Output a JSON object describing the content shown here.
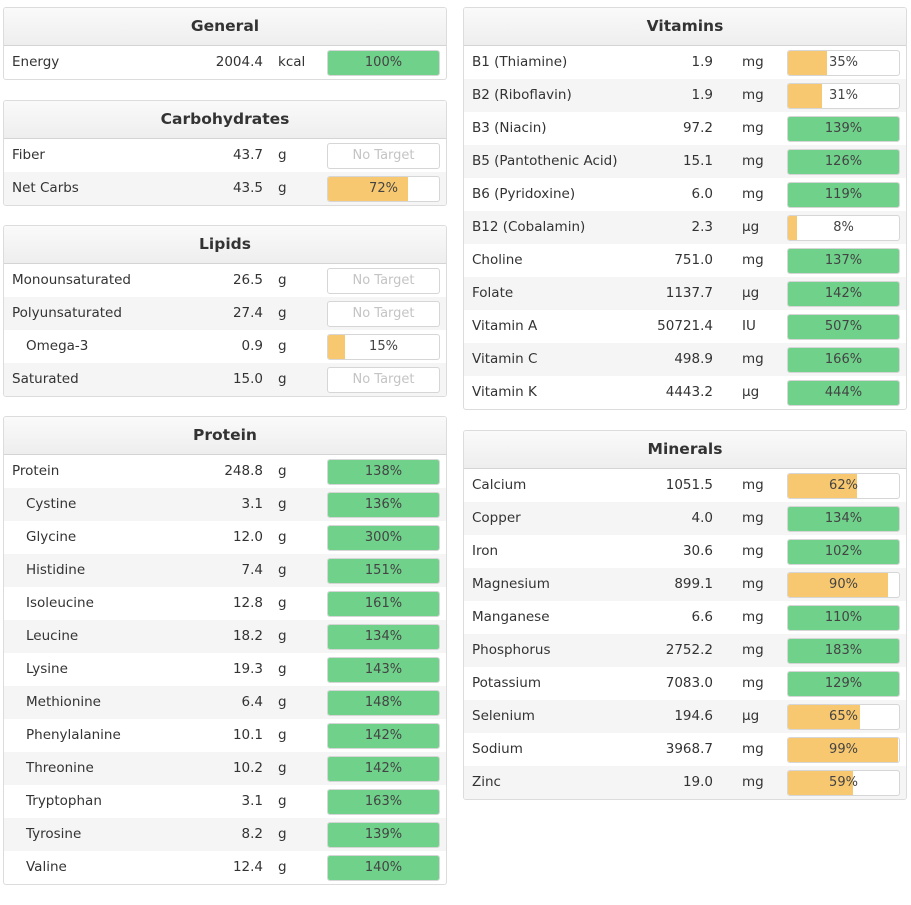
{
  "colors": {
    "green": "#6fd18a",
    "orange": "#f8c870"
  },
  "left": [
    {
      "title": "General",
      "rows": [
        {
          "name": "Energy",
          "amount": "2004.4",
          "unit": "kcal",
          "pct": "100%",
          "fraction": 1.0,
          "status": "green"
        }
      ]
    },
    {
      "title": "Carbohydrates",
      "rows": [
        {
          "name": "Fiber",
          "amount": "43.7",
          "unit": "g",
          "pct": "No Target",
          "fraction": 0,
          "status": "none"
        },
        {
          "name": "Net Carbs",
          "amount": "43.5",
          "unit": "g",
          "pct": "72%",
          "fraction": 0.72,
          "status": "orange"
        }
      ]
    },
    {
      "title": "Lipids",
      "rows": [
        {
          "name": "Monounsaturated",
          "amount": "26.5",
          "unit": "g",
          "pct": "No Target",
          "fraction": 0,
          "status": "none"
        },
        {
          "name": "Polyunsaturated",
          "amount": "27.4",
          "unit": "g",
          "pct": "No Target",
          "fraction": 0,
          "status": "none"
        },
        {
          "name": "Omega-3",
          "amount": "0.9",
          "unit": "g",
          "pct": "15%",
          "fraction": 0.15,
          "status": "orange",
          "sub": true
        },
        {
          "name": "Saturated",
          "amount": "15.0",
          "unit": "g",
          "pct": "No Target",
          "fraction": 0,
          "status": "none"
        }
      ]
    },
    {
      "title": "Protein",
      "rows": [
        {
          "name": "Protein",
          "amount": "248.8",
          "unit": "g",
          "pct": "138%",
          "fraction": 1.0,
          "status": "green"
        },
        {
          "name": "Cystine",
          "amount": "3.1",
          "unit": "g",
          "pct": "136%",
          "fraction": 1.0,
          "status": "green",
          "sub": true
        },
        {
          "name": "Glycine",
          "amount": "12.0",
          "unit": "g",
          "pct": "300%",
          "fraction": 1.0,
          "status": "green",
          "sub": true
        },
        {
          "name": "Histidine",
          "amount": "7.4",
          "unit": "g",
          "pct": "151%",
          "fraction": 1.0,
          "status": "green",
          "sub": true
        },
        {
          "name": "Isoleucine",
          "amount": "12.8",
          "unit": "g",
          "pct": "161%",
          "fraction": 1.0,
          "status": "green",
          "sub": true
        },
        {
          "name": "Leucine",
          "amount": "18.2",
          "unit": "g",
          "pct": "134%",
          "fraction": 1.0,
          "status": "green",
          "sub": true
        },
        {
          "name": "Lysine",
          "amount": "19.3",
          "unit": "g",
          "pct": "143%",
          "fraction": 1.0,
          "status": "green",
          "sub": true
        },
        {
          "name": "Methionine",
          "amount": "6.4",
          "unit": "g",
          "pct": "148%",
          "fraction": 1.0,
          "status": "green",
          "sub": true
        },
        {
          "name": "Phenylalanine",
          "amount": "10.1",
          "unit": "g",
          "pct": "142%",
          "fraction": 1.0,
          "status": "green",
          "sub": true
        },
        {
          "name": "Threonine",
          "amount": "10.2",
          "unit": "g",
          "pct": "142%",
          "fraction": 1.0,
          "status": "green",
          "sub": true
        },
        {
          "name": "Tryptophan",
          "amount": "3.1",
          "unit": "g",
          "pct": "163%",
          "fraction": 1.0,
          "status": "green",
          "sub": true
        },
        {
          "name": "Tyrosine",
          "amount": "8.2",
          "unit": "g",
          "pct": "139%",
          "fraction": 1.0,
          "status": "green",
          "sub": true
        },
        {
          "name": "Valine",
          "amount": "12.4",
          "unit": "g",
          "pct": "140%",
          "fraction": 1.0,
          "status": "green",
          "sub": true
        }
      ]
    }
  ],
  "right": [
    {
      "title": "Vitamins",
      "rows": [
        {
          "name": "B1 (Thiamine)",
          "amount": "1.9",
          "unit": "mg",
          "pct": "35%",
          "fraction": 0.35,
          "status": "orange"
        },
        {
          "name": "B2 (Riboflavin)",
          "amount": "1.9",
          "unit": "mg",
          "pct": "31%",
          "fraction": 0.31,
          "status": "orange"
        },
        {
          "name": "B3 (Niacin)",
          "amount": "97.2",
          "unit": "mg",
          "pct": "139%",
          "fraction": 1.0,
          "status": "green"
        },
        {
          "name": "B5 (Pantothenic Acid)",
          "amount": "15.1",
          "unit": "mg",
          "pct": "126%",
          "fraction": 1.0,
          "status": "green"
        },
        {
          "name": "B6 (Pyridoxine)",
          "amount": "6.0",
          "unit": "mg",
          "pct": "119%",
          "fraction": 1.0,
          "status": "green"
        },
        {
          "name": "B12 (Cobalamin)",
          "amount": "2.3",
          "unit": "µg",
          "pct": "8%",
          "fraction": 0.08,
          "status": "orange"
        },
        {
          "name": "Choline",
          "amount": "751.0",
          "unit": "mg",
          "pct": "137%",
          "fraction": 1.0,
          "status": "green"
        },
        {
          "name": "Folate",
          "amount": "1137.7",
          "unit": "µg",
          "pct": "142%",
          "fraction": 1.0,
          "status": "green"
        },
        {
          "name": "Vitamin A",
          "amount": "50721.4",
          "unit": "IU",
          "pct": "507%",
          "fraction": 1.0,
          "status": "green"
        },
        {
          "name": "Vitamin C",
          "amount": "498.9",
          "unit": "mg",
          "pct": "166%",
          "fraction": 1.0,
          "status": "green"
        },
        {
          "name": "Vitamin K",
          "amount": "4443.2",
          "unit": "µg",
          "pct": "444%",
          "fraction": 1.0,
          "status": "green"
        }
      ]
    },
    {
      "title": "Minerals",
      "rows": [
        {
          "name": "Calcium",
          "amount": "1051.5",
          "unit": "mg",
          "pct": "62%",
          "fraction": 0.62,
          "status": "orange"
        },
        {
          "name": "Copper",
          "amount": "4.0",
          "unit": "mg",
          "pct": "134%",
          "fraction": 1.0,
          "status": "green"
        },
        {
          "name": "Iron",
          "amount": "30.6",
          "unit": "mg",
          "pct": "102%",
          "fraction": 1.0,
          "status": "green"
        },
        {
          "name": "Magnesium",
          "amount": "899.1",
          "unit": "mg",
          "pct": "90%",
          "fraction": 0.9,
          "status": "orange"
        },
        {
          "name": "Manganese",
          "amount": "6.6",
          "unit": "mg",
          "pct": "110%",
          "fraction": 1.0,
          "status": "green"
        },
        {
          "name": "Phosphorus",
          "amount": "2752.2",
          "unit": "mg",
          "pct": "183%",
          "fraction": 1.0,
          "status": "green"
        },
        {
          "name": "Potassium",
          "amount": "7083.0",
          "unit": "mg",
          "pct": "129%",
          "fraction": 1.0,
          "status": "green"
        },
        {
          "name": "Selenium",
          "amount": "194.6",
          "unit": "µg",
          "pct": "65%",
          "fraction": 0.65,
          "status": "orange"
        },
        {
          "name": "Sodium",
          "amount": "3968.7",
          "unit": "mg",
          "pct": "99%",
          "fraction": 0.99,
          "status": "orange"
        },
        {
          "name": "Zinc",
          "amount": "19.0",
          "unit": "mg",
          "pct": "59%",
          "fraction": 0.59,
          "status": "orange"
        }
      ]
    }
  ]
}
